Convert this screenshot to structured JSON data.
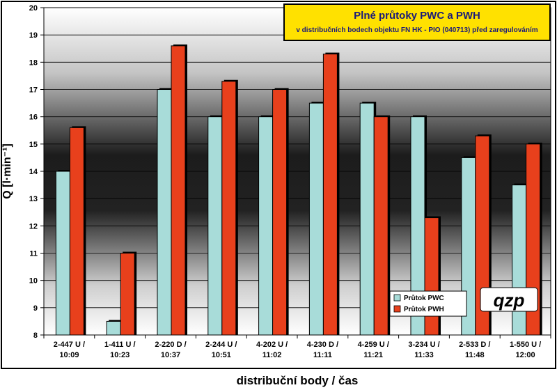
{
  "chart_data": {
    "type": "bar",
    "title": "Plné průtoky PWC a PWH",
    "subtitle": "v distribučních bodech objektu FN HK - PIO (040713) před zaregulováním",
    "xlabel": "distribuční body / čas",
    "ylabel": "Q [l·min⁻¹]",
    "ylim": [
      8,
      20
    ],
    "yticks": [
      8,
      9,
      10,
      11,
      12,
      13,
      14,
      15,
      16,
      17,
      18,
      19,
      20
    ],
    "grid": true,
    "legend_position": "bottom-right",
    "categories": [
      [
        "2-447 U /",
        "10:09"
      ],
      [
        "1-411 U /",
        "10:23"
      ],
      [
        "2-220 D /",
        "10:37"
      ],
      [
        "2-244 U /",
        "10:51"
      ],
      [
        "4-202 U /",
        "11:02"
      ],
      [
        "4-230 D /",
        "11:11"
      ],
      [
        "4-259 U /",
        "11:21"
      ],
      [
        "3-234 U /",
        "11:33"
      ],
      [
        "2-533 D /",
        "11:48"
      ],
      [
        "1-550 U /",
        "12:00"
      ]
    ],
    "series": [
      {
        "name": "Průtok PWC",
        "color": "#a8dcd9",
        "values": [
          14.0,
          8.5,
          17.0,
          16.0,
          16.0,
          16.5,
          16.5,
          16.0,
          14.5,
          13.5
        ]
      },
      {
        "name": "Průtok PWH",
        "color": "#e8401c",
        "values": [
          15.6,
          11.0,
          18.6,
          17.3,
          17.0,
          18.3,
          16.0,
          12.3,
          15.3,
          15.0
        ]
      }
    ]
  },
  "logo": {
    "text": "qzp"
  }
}
